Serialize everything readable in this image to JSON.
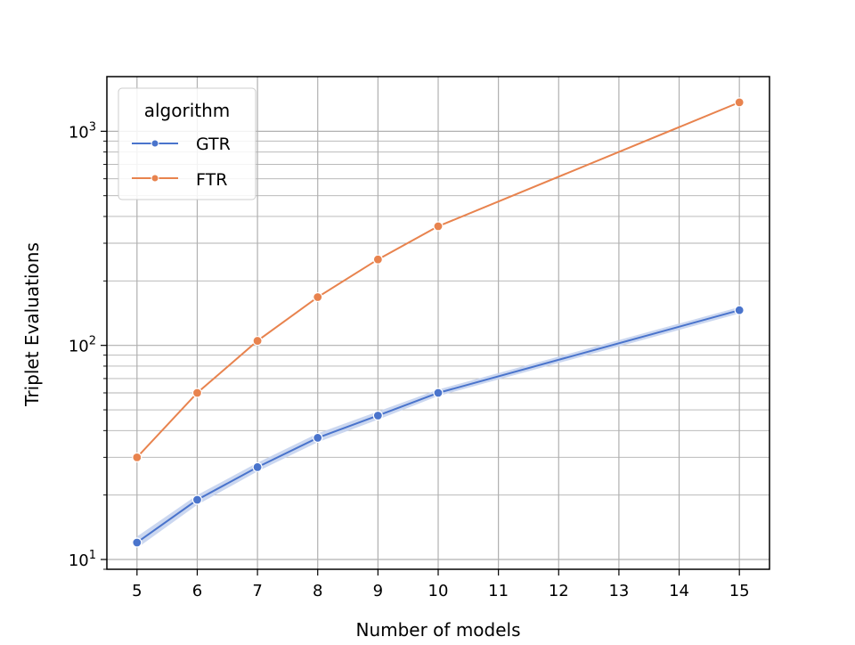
{
  "chart_data": {
    "type": "line",
    "title": "",
    "xlabel": "Number of models",
    "ylabel": "Triplet Evaluations",
    "xscale": "linear",
    "yscale": "log",
    "xlim": [
      4.5,
      15.5
    ],
    "ylim": [
      9,
      1800
    ],
    "x_ticks": [
      5,
      6,
      7,
      8,
      9,
      10,
      11,
      12,
      13,
      14,
      15
    ],
    "y_major_ticks": [
      {
        "value": 10,
        "base": "10",
        "exp": "1"
      },
      {
        "value": 100,
        "base": "10",
        "exp": "2"
      },
      {
        "value": 1000,
        "base": "10",
        "exp": "3"
      }
    ],
    "grid": true,
    "legend": {
      "title": "algorithm",
      "position": "top-left"
    },
    "series": [
      {
        "name": "GTR",
        "color": "#4a74cc",
        "band_color": "#c5d3ee",
        "x": [
          5,
          6,
          7,
          8,
          9,
          10,
          15
        ],
        "y": [
          12,
          19,
          27,
          37,
          47,
          60,
          146
        ],
        "ci_lower": [
          11.3,
          18.0,
          25.8,
          35.3,
          45.0,
          58.0,
          141
        ],
        "ci_upper": [
          12.8,
          20.0,
          28.3,
          38.8,
          49.1,
          62.2,
          151
        ]
      },
      {
        "name": "FTR",
        "color": "#e8834e",
        "x": [
          5,
          6,
          7,
          8,
          9,
          10,
          15
        ],
        "y": [
          30,
          60,
          105,
          168,
          252,
          360,
          1365
        ]
      }
    ]
  }
}
